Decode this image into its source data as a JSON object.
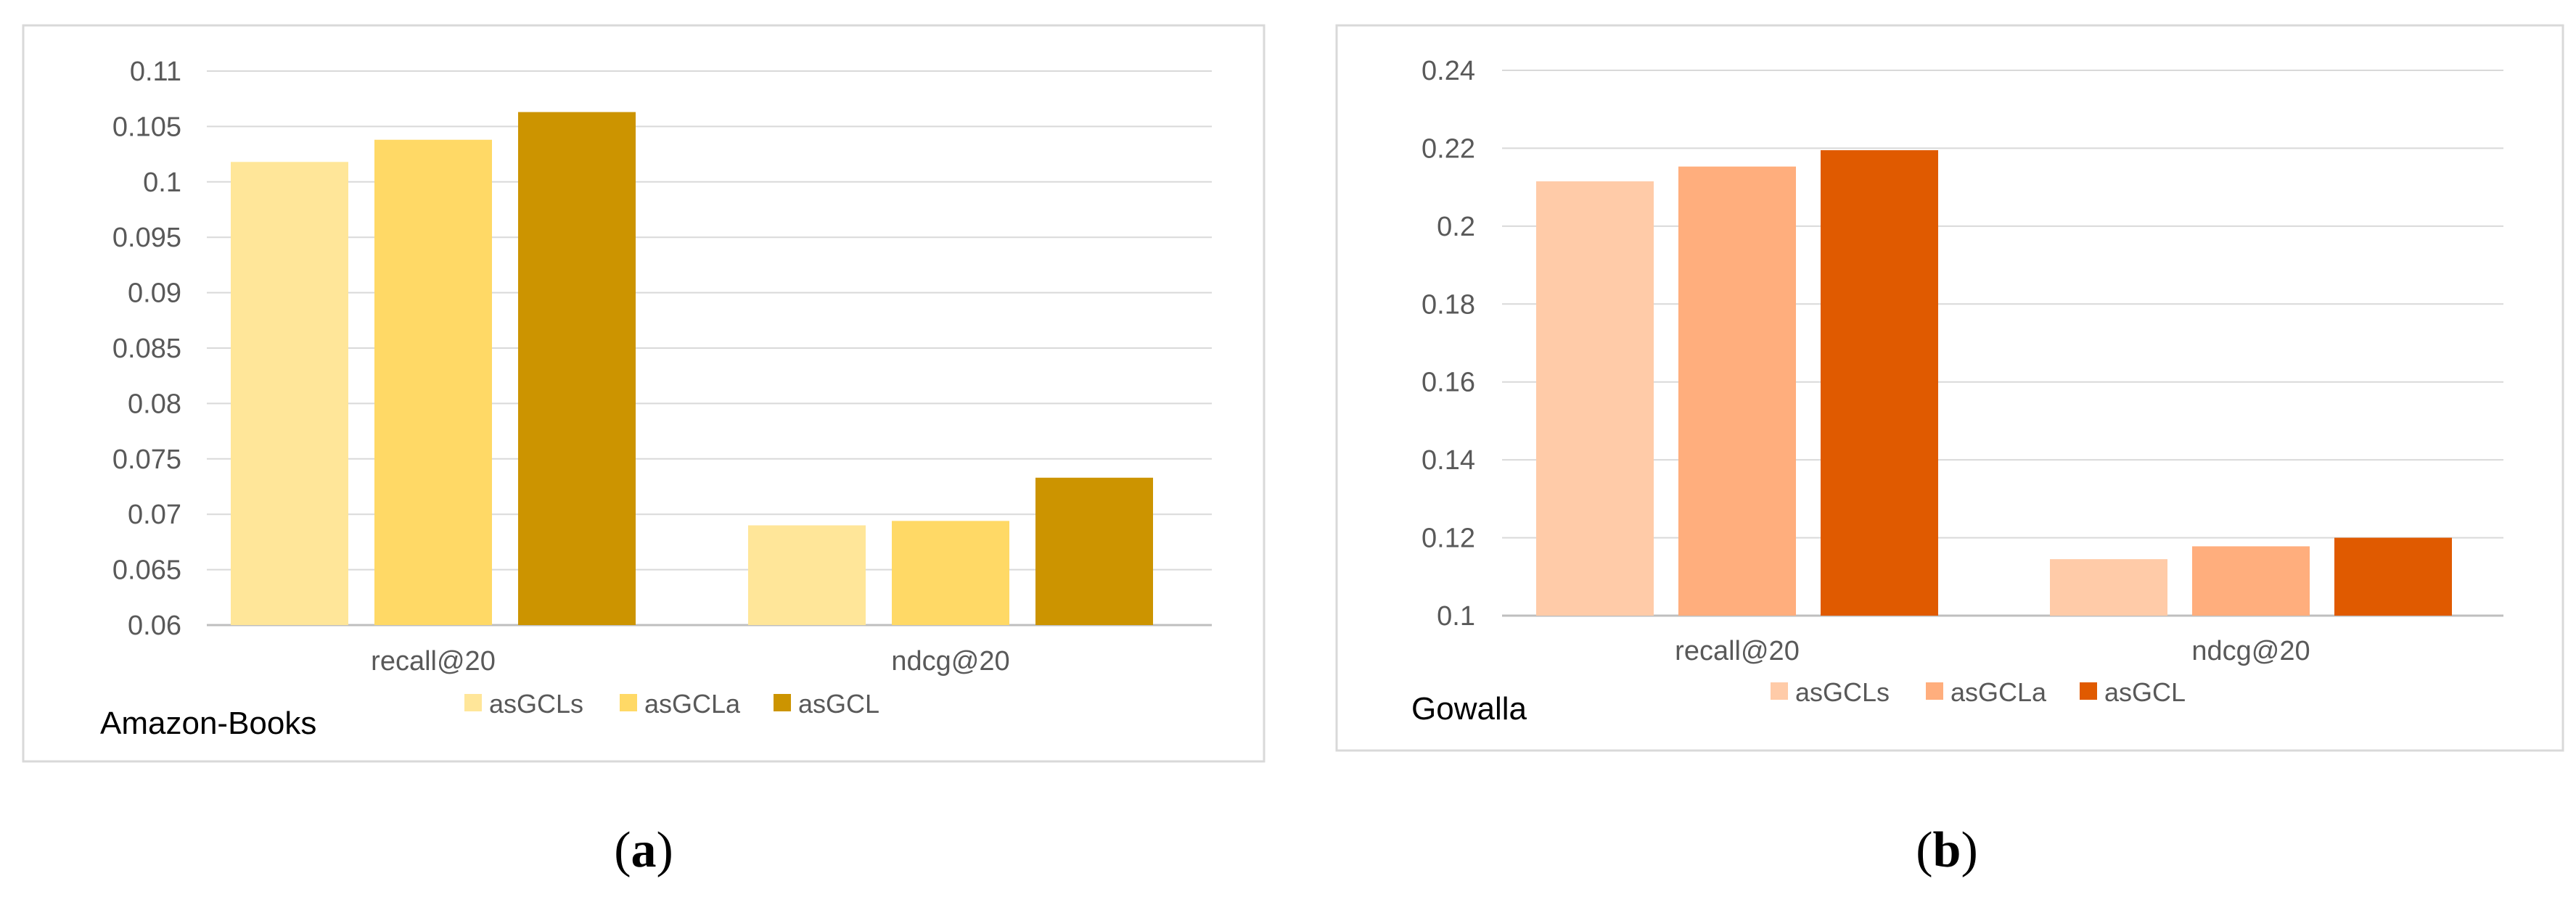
{
  "chart_data": [
    {
      "type": "bar",
      "dataset_label": "Amazon-Books",
      "subfigure_label": "a",
      "categories": [
        "recall@20",
        "ndcg@20"
      ],
      "series": [
        {
          "name": "asGCLs",
          "color": "#FFE699",
          "values": [
            0.1018,
            0.069
          ]
        },
        {
          "name": "asGCLa",
          "color": "#FFD966",
          "values": [
            0.1038,
            0.0694
          ]
        },
        {
          "name": "asGCL",
          "color": "#CC9400",
          "values": [
            0.1063,
            0.0733
          ]
        }
      ],
      "ylim": [
        0.06,
        0.11
      ],
      "yticks": [
        "0.06",
        "0.065",
        "0.07",
        "0.075",
        "0.08",
        "0.085",
        "0.09",
        "0.095",
        "0.1",
        "0.105",
        "0.11"
      ],
      "grid": true,
      "legend_position": "bottom"
    },
    {
      "type": "bar",
      "dataset_label": "Gowalla",
      "subfigure_label": "b",
      "categories": [
        "recall@20",
        "ndcg@20"
      ],
      "series": [
        {
          "name": "asGCLs",
          "color": "#FFCBA8",
          "values": [
            0.2115,
            0.1145
          ]
        },
        {
          "name": "asGCLa",
          "color": "#FFAE7D",
          "values": [
            0.2153,
            0.1178
          ]
        },
        {
          "name": "asGCL",
          "color": "#E05A00",
          "values": [
            0.2195,
            0.12
          ]
        }
      ],
      "ylim": [
        0.1,
        0.24
      ],
      "yticks": [
        "0.1",
        "0.12",
        "0.14",
        "0.16",
        "0.18",
        "0.2",
        "0.22",
        "0.24"
      ],
      "grid": true,
      "legend_position": "bottom"
    }
  ]
}
